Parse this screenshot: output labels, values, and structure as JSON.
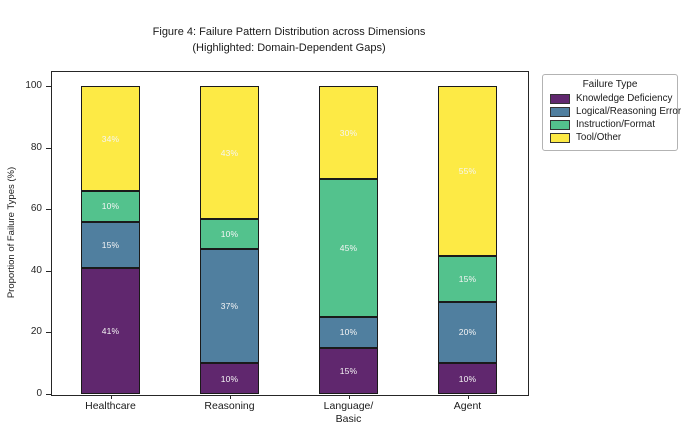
{
  "chart_data": {
    "type": "bar",
    "stacked": true,
    "title": "Figure 4: Failure Pattern Distribution across Dimensions",
    "subtitle": "(Highlighted: Domain-Dependent Gaps)",
    "ylabel": "Proportion of Failure Types (%)",
    "xlabel": "",
    "categories": [
      "Healthcare",
      "Reasoning",
      "Language/\nBasic",
      "Agent"
    ],
    "series": [
      {
        "name": "Knowledge Deficiency",
        "color": "#60276e",
        "values": [
          41,
          10,
          15,
          10
        ],
        "labels": [
          "41%",
          "10%",
          "15%",
          "10%"
        ]
      },
      {
        "name": "Logical/Reasoning Error",
        "color": "#507f9f",
        "values": [
          15,
          37,
          10,
          20
        ],
        "labels": [
          "15%",
          "37%",
          "10%",
          "20%"
        ]
      },
      {
        "name": "Instruction/Format",
        "color": "#53c28d",
        "values": [
          10,
          10,
          45,
          15
        ],
        "labels": [
          "10%",
          "10%",
          "45%",
          "15%"
        ]
      },
      {
        "name": "Tool/Other",
        "color": "#fdea45",
        "values": [
          34,
          43,
          30,
          55
        ],
        "labels": [
          "34%",
          "43%",
          "30%",
          "55%"
        ]
      }
    ],
    "yticks": [
      "0",
      "20",
      "40",
      "60",
      "80",
      "100"
    ],
    "ylim": [
      0,
      105
    ],
    "grid": false,
    "bar_width_ratio": 0.5,
    "bar_edge_color": "#1a1a1a",
    "legend": {
      "title": "Failure Type",
      "position": "outside-upper-right"
    }
  }
}
